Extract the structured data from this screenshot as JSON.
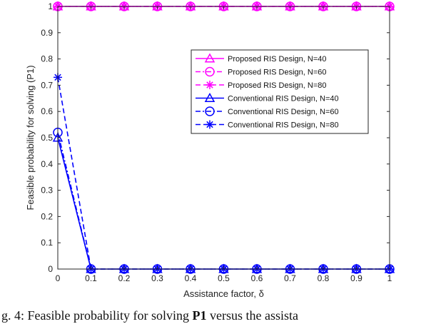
{
  "chart_data": {
    "type": "line",
    "xlabel": "Assistance factor, δ",
    "ylabel": "Feasible probability for solving (P1)",
    "xlim": [
      0,
      1
    ],
    "ylim": [
      0,
      1
    ],
    "xticks": [
      0,
      0.1,
      0.2,
      0.3,
      0.4,
      0.5,
      0.6,
      0.7,
      0.8,
      0.9,
      1
    ],
    "xtick_labels": [
      "0",
      "0.1",
      "0.2",
      "0.3",
      "0.4",
      "0.5",
      "0.6",
      "0.7",
      "0.8",
      "0.9",
      "1"
    ],
    "yticks": [
      0,
      0.1,
      0.2,
      0.3,
      0.4,
      0.5,
      0.6,
      0.7,
      0.8,
      0.9,
      1
    ],
    "ytick_labels": [
      "0",
      "0.1",
      "0.2",
      "0.3",
      "0.4",
      "0.5",
      "0.6",
      "0.7",
      "0.8",
      "0.9",
      "1"
    ],
    "grid": false,
    "legend_position": "center-right",
    "x": [
      0,
      0.1,
      0.2,
      0.3,
      0.4,
      0.5,
      0.6,
      0.7,
      0.8,
      0.9,
      1
    ],
    "series": [
      {
        "name": "Proposed RIS Design, N=40",
        "values": [
          1,
          1,
          1,
          1,
          1,
          1,
          1,
          1,
          1,
          1,
          1
        ],
        "color": "#ff00ff",
        "dash": "solid",
        "marker": "triangle"
      },
      {
        "name": "Proposed RIS Design, N=60",
        "values": [
          1,
          1,
          1,
          1,
          1,
          1,
          1,
          1,
          1,
          1,
          1
        ],
        "color": "#ff00ff",
        "dash": "dashdot",
        "marker": "circle"
      },
      {
        "name": "Proposed RIS Design, N=80",
        "values": [
          1,
          1,
          1,
          1,
          1,
          1,
          1,
          1,
          1,
          1,
          1
        ],
        "color": "#ff00ff",
        "dash": "dashed",
        "marker": "asterisk"
      },
      {
        "name": "Conventional RIS Design, N=40",
        "values": [
          0.5,
          0,
          0,
          0,
          0,
          0,
          0,
          0,
          0,
          0,
          0
        ],
        "color": "#0000ff",
        "dash": "solid",
        "marker": "triangle"
      },
      {
        "name": "Conventional RIS Design, N=60",
        "values": [
          0.52,
          0,
          0,
          0,
          0,
          0,
          0,
          0,
          0,
          0,
          0
        ],
        "color": "#0000ff",
        "dash": "dashdot",
        "marker": "circle"
      },
      {
        "name": "Conventional RIS Design, N=80",
        "values": [
          0.73,
          0,
          0,
          0,
          0,
          0,
          0,
          0,
          0,
          0,
          0
        ],
        "color": "#0000ff",
        "dash": "dashed",
        "marker": "asterisk"
      }
    ]
  },
  "caption": {
    "prefix": "g. 4: Feasible probability for solving ",
    "bold": "P1",
    "suffix": " versus the assista"
  }
}
